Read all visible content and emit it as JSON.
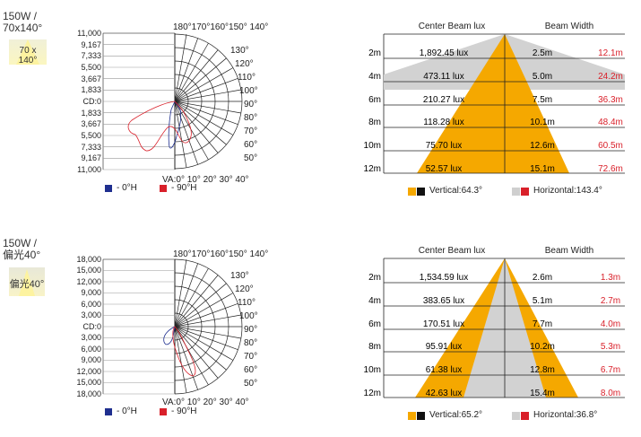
{
  "panels": [
    {
      "title_l1": "150W /",
      "title_l2": "70x140°",
      "badge": "70 x 140°",
      "top_angles": "180°170°160°150° 140°",
      "va_label": "VA:0° 10° 20° 30° 40°",
      "scale": [
        "11,000",
        "9,167",
        "7,333",
        "5,500",
        "3,667",
        "1,833",
        "CD:0",
        "1,833",
        "3,667",
        "5,500",
        "7,333",
        "9,167",
        "11,000"
      ],
      "right_angles": [
        "130°",
        "120°",
        "110°",
        "100°",
        "90°",
        "80°",
        "70°",
        "60°",
        "50°"
      ],
      "legend": [
        {
          "label": "- 0°H",
          "color": "#1f2f8f"
        },
        {
          "label": "- 90°H",
          "color": "#d9202a"
        }
      ],
      "table_head": {
        "lux": "Center Beam lux",
        "width": "Beam Width"
      },
      "rows": [
        {
          "d": "2m",
          "lux": "1,892.45 lux",
          "w1": "2.5m",
          "w2": "12.1m"
        },
        {
          "d": "4m",
          "lux": "473.11 lux",
          "w1": "5.0m",
          "w2": "24.2m"
        },
        {
          "d": "6m",
          "lux": "210.27 lux",
          "w1": "7.5m",
          "w2": "36.3m"
        },
        {
          "d": "8m",
          "lux": "118.28 lux",
          "w1": "10.1m",
          "w2": "48.4m"
        },
        {
          "d": "10m",
          "lux": "75.70 lux",
          "w1": "12.6m",
          "w2": "60.5m"
        },
        {
          "d": "12m",
          "lux": "52.57 lux",
          "w1": "15.1m",
          "w2": "72.6m"
        }
      ],
      "beam_legend": {
        "vertical": "Vertical:64.3°",
        "horizontal": "Horizontal:143.4°"
      }
    },
    {
      "title_l1": "150W /",
      "title_l2": "偏光40°",
      "badge": "偏光40°",
      "top_angles": "180°170°160°150° 140°",
      "va_label": "VA:0° 10° 20° 30° 40°",
      "scale": [
        "18,000",
        "15,000",
        "12,000",
        "9,000",
        "6,000",
        "3,000",
        "CD:0",
        "3,000",
        "6,000",
        "9,000",
        "12,000",
        "15,000",
        "18,000"
      ],
      "right_angles": [
        "130°",
        "120°",
        "110°",
        "100°",
        "90°",
        "80°",
        "70°",
        "60°",
        "50°"
      ],
      "legend": [
        {
          "label": "- 0°H",
          "color": "#1f2f8f"
        },
        {
          "label": "- 90°H",
          "color": "#d9202a"
        }
      ],
      "table_head": {
        "lux": "Center Beam lux",
        "width": "Beam Width"
      },
      "rows": [
        {
          "d": "2m",
          "lux": "1,534.59 lux",
          "w1": "2.6m",
          "w2": "1.3m"
        },
        {
          "d": "4m",
          "lux": "383.65 lux",
          "w1": "5.1m",
          "w2": "2.7m"
        },
        {
          "d": "6m",
          "lux": "170.51 lux",
          "w1": "7.7m",
          "w2": "4.0m"
        },
        {
          "d": "8m",
          "lux": "95.91 lux",
          "w1": "10.2m",
          "w2": "5.3m"
        },
        {
          "d": "10m",
          "lux": "61.38 lux",
          "w1": "12.8m",
          "w2": "6.7m"
        },
        {
          "d": "12m",
          "lux": "42.63 lux",
          "w1": "15.4m",
          "w2": "8.0m"
        }
      ],
      "beam_legend": {
        "vertical": "Vertical:65.2°",
        "horizontal": "Horizontal:36.8°"
      }
    }
  ]
}
